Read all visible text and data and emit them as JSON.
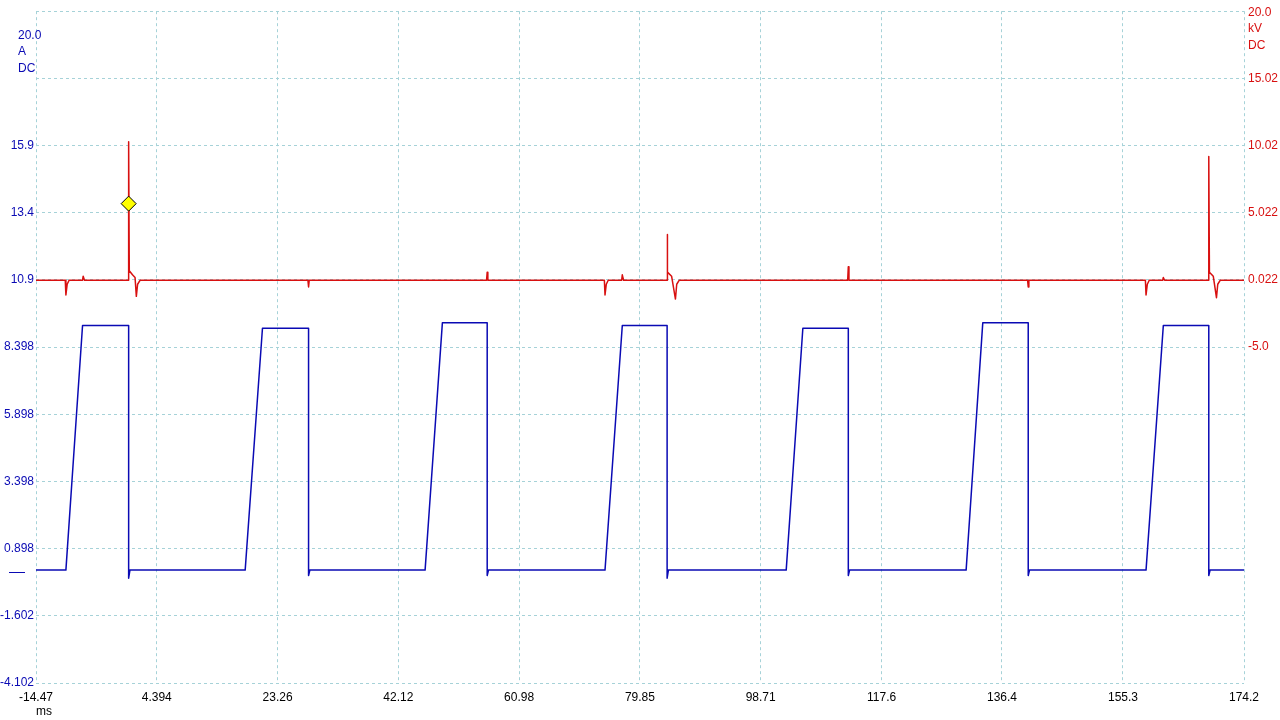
{
  "chart_data": {
    "type": "line",
    "xlabel": "ms",
    "ylabel": "20.0 A DC",
    "y2label": "20.0 kV DC",
    "xlim": [
      -14.47,
      174.2
    ],
    "xticks": [
      -14.47,
      4.394,
      23.26,
      42.12,
      60.98,
      79.85,
      98.71,
      117.6,
      136.4,
      155.3,
      174.2
    ],
    "ylim": [
      -4.102,
      20.898
    ],
    "yticks": [
      -4.102,
      -1.602,
      0.898,
      3.398,
      5.898,
      8.398,
      10.9,
      13.4,
      15.9,
      {
        "value": 18.4,
        "label": null
      },
      {
        "value": 20.898,
        "label": null
      }
    ],
    "y2lim": [
      -29.978,
      20.022
    ],
    "y2ticks": [
      {
        "value": -4.978,
        "label": "-5.0"
      },
      0.022,
      5.022,
      10.02,
      15.02
    ],
    "grid": true,
    "series": [
      {
        "color": "#0a0ab4",
        "x": [
          -14.47,
          -9.8,
          -7.2,
          0.0,
          0.0,
          0.2,
          18.2,
          20.9,
          28.1,
          28.1,
          28.3,
          46.3,
          49.0,
          56.0,
          56.0,
          56.2,
          74.4,
          77.1,
          84.1,
          84.1,
          84.3,
          102.7,
          105.3,
          112.4,
          112.4,
          112.6,
          130.8,
          133.4,
          140.5,
          140.5,
          140.7,
          158.9,
          161.6,
          168.7,
          168.7,
          168.9,
          174.2
        ],
        "values": [
          0.1,
          0.1,
          9.2,
          9.2,
          -0.2,
          0.1,
          0.1,
          9.1,
          9.1,
          -0.1,
          0.1,
          0.1,
          9.3,
          9.3,
          -0.1,
          0.1,
          0.1,
          9.2,
          9.2,
          -0.2,
          0.1,
          0.1,
          9.1,
          9.1,
          -0.1,
          0.1,
          0.1,
          9.3,
          9.3,
          -0.1,
          0.1,
          0.1,
          9.2,
          9.2,
          -0.1,
          0.1,
          0.1
        ]
      },
      {
        "axis": "y2",
        "color": "#d81010",
        "x": [
          -14.47,
          -9.9,
          -9.8,
          -9.6,
          -9.3,
          -7.2,
          -7.1,
          -6.9,
          0.0,
          0.0,
          0.1,
          0.6,
          1.0,
          1.2,
          1.4,
          1.8,
          28.0,
          28.1,
          28.2,
          55.9,
          56.0,
          56.1,
          74.3,
          74.4,
          74.6,
          74.9,
          77.0,
          77.1,
          77.3,
          84.1,
          84.1,
          84.2,
          84.8,
          85.4,
          85.6,
          86.0,
          112.3,
          112.4,
          112.5,
          140.4,
          140.5,
          140.6,
          158.8,
          158.9,
          159.1,
          159.4,
          161.5,
          161.6,
          161.8,
          168.7,
          168.7,
          168.8,
          169.4,
          169.9,
          170.1,
          170.5,
          174.2
        ],
        "values": [
          0.0,
          0.0,
          -1.1,
          -0.3,
          0.0,
          0.0,
          0.3,
          0.0,
          0.0,
          10.3,
          0.7,
          0.4,
          0.2,
          -1.2,
          -0.3,
          0.0,
          0.0,
          -0.5,
          0.0,
          0.0,
          0.6,
          0.0,
          0.0,
          -1.1,
          -0.3,
          0.0,
          0.0,
          0.4,
          0.0,
          0.0,
          3.4,
          0.6,
          0.3,
          -1.4,
          -0.3,
          0.0,
          0.0,
          1.0,
          0.0,
          0.0,
          -0.5,
          0.0,
          0.0,
          -1.1,
          -0.3,
          0.0,
          0.0,
          0.2,
          0.0,
          0.0,
          9.2,
          0.6,
          0.3,
          -1.3,
          -0.3,
          0.0,
          0.0
        ]
      },
      {
        "type": "scatter",
        "axis": "y2",
        "color": "#ffff00",
        "marker": "diamond",
        "x": [
          0.0
        ],
        "values": [
          5.7
        ]
      }
    ]
  }
}
